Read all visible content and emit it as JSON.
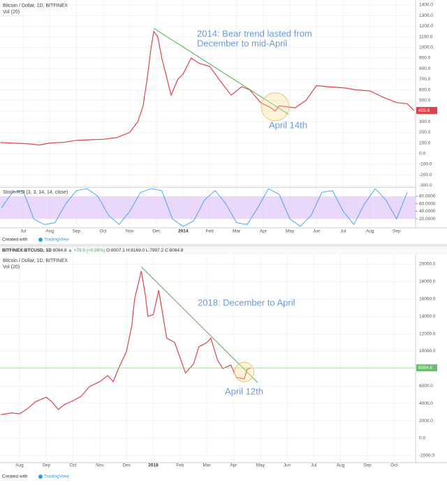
{
  "chart_data": [
    {
      "type": "line",
      "title": "Bitcoin / Dollar, 1D, BITFINEX",
      "volume_label": "Vol (20)",
      "color": "#e0424a",
      "grid": true,
      "x": [
        -0.85,
        -0.5,
        0,
        0.3,
        0.6,
        1,
        1.5,
        2,
        2.5,
        3,
        3.5,
        4,
        4.3,
        4.5,
        4.65,
        4.8,
        4.9,
        5.05,
        5.2,
        5.35,
        5.55,
        5.8,
        6.0,
        6.3,
        6.6,
        7.0,
        7.4,
        7.8,
        8.2,
        8.5,
        8.9,
        9.3,
        9.45,
        9.6,
        9.9,
        10.2,
        10.6,
        11.0,
        11.4,
        12.0,
        12.5,
        13.0,
        13.5,
        14.0,
        14.4,
        14.65
      ],
      "values": [
        105,
        100,
        95,
        90,
        80,
        100,
        105,
        125,
        130,
        135,
        150,
        200,
        300,
        450,
        700,
        1000,
        1150,
        1100,
        900,
        750,
        550,
        700,
        750,
        900,
        850,
        820,
        680,
        550,
        630,
        600,
        480,
        430,
        400,
        450,
        440,
        430,
        500,
        640,
        630,
        620,
        600,
        590,
        530,
        480,
        470,
        405.8
      ],
      "last_price": 405.8,
      "xlim": [
        -0.864,
        14.712
      ],
      "xticks": [
        {
          "value": 0,
          "label": "Jul"
        },
        {
          "value": 1,
          "label": "Aug"
        },
        {
          "value": 2,
          "label": "Sep"
        },
        {
          "value": 3,
          "label": "Oct"
        },
        {
          "value": 4,
          "label": "Nov"
        },
        {
          "value": 5,
          "label": "Dec"
        },
        {
          "value": 6,
          "label": "2014"
        },
        {
          "value": 7,
          "label": "Feb"
        },
        {
          "value": 8,
          "label": "Mar"
        },
        {
          "value": 9,
          "label": "Apr"
        },
        {
          "value": 10,
          "label": "May"
        },
        {
          "value": 11,
          "label": "Jun"
        },
        {
          "value": 12,
          "label": "Jul"
        },
        {
          "value": 13,
          "label": "Aug"
        },
        {
          "value": 14,
          "label": "Sep"
        }
      ],
      "ylim": [
        -300,
        1400
      ],
      "yticks": [
        {
          "value": 1400,
          "label": "1400.0"
        },
        {
          "value": 1300,
          "label": "1300.0"
        },
        {
          "value": 1200,
          "label": "1200.0"
        },
        {
          "value": 1100,
          "label": "1100.0"
        },
        {
          "value": 1000,
          "label": "1000.0"
        },
        {
          "value": 900,
          "label": "900.0"
        },
        {
          "value": 800,
          "label": "800.0"
        },
        {
          "value": 700,
          "label": "700.0"
        },
        {
          "value": 600,
          "label": "600.0"
        },
        {
          "value": 500,
          "label": "500.0"
        },
        {
          "value": 400,
          "label": "400.0"
        },
        {
          "value": 300,
          "label": "300.0"
        },
        {
          "value": 200,
          "label": "200.0"
        },
        {
          "value": 100,
          "label": "100.0"
        },
        {
          "value": 0,
          "label": "0.0"
        },
        {
          "value": -100,
          "label": "-100.0"
        },
        {
          "value": -200,
          "label": "-200.0"
        },
        {
          "value": -300,
          "label": "-300.0"
        }
      ],
      "trendline": {
        "color": "#4caf50",
        "x": [
          4.9,
          9.95
        ],
        "y": [
          1180,
          370
        ]
      },
      "highlight": {
        "x": 9.45,
        "y": 440
      },
      "annotations": [
        "2014: Bear trend lasted from",
        "December to mid-April"
      ],
      "callout": "April 14th",
      "stoch": {
        "title": "Stoch RSI (3, 3, 14, 14, close)",
        "color": "#2196f3",
        "ylim": [
          0,
          100
        ],
        "band": [
          20,
          80
        ],
        "yticks": [
          {
            "value": 80,
            "label": "80.0000"
          },
          {
            "value": 60,
            "label": "60.0000"
          },
          {
            "value": 40,
            "label": "40.0000"
          },
          {
            "value": 20,
            "label": "20.0000"
          }
        ],
        "x": [
          -0.8,
          -0.4,
          0,
          0.4,
          0.8,
          1.2,
          1.6,
          2,
          2.4,
          2.8,
          3.2,
          3.6,
          4,
          4.4,
          4.8,
          5.2,
          5.6,
          6,
          6.4,
          6.8,
          7.2,
          7.6,
          8,
          8.4,
          8.8,
          9.2,
          9.6,
          10,
          10.4,
          10.8,
          11.2,
          11.6,
          12,
          12.4,
          12.8,
          13.2,
          13.6,
          14,
          14.4
        ],
        "values": [
          50,
          90,
          95,
          20,
          5,
          10,
          60,
          95,
          100,
          80,
          30,
          5,
          40,
          90,
          100,
          95,
          20,
          0,
          15,
          70,
          95,
          60,
          10,
          5,
          50,
          100,
          85,
          20,
          0,
          30,
          90,
          95,
          40,
          5,
          60,
          100,
          70,
          20,
          90
        ]
      },
      "credit": "Created with",
      "brand": "TradingView"
    },
    {
      "type": "line",
      "title": "Bitcoin / Dollar, 1D, BITFINEX",
      "volume_label": "Vol (20)",
      "color": "#e0424a",
      "grid": true,
      "header": {
        "symbol": "BITFINEX:BTCUSD, 1D",
        "last": "8084.8",
        "change": "▲ +78.9 (+0.99%)",
        "ohlc": "O:8007.1 H:8169.0 L:7997.2 C:8084.8"
      },
      "x": [
        -0.7,
        -0.3,
        0,
        0.3,
        0.6,
        1.0,
        1.2,
        1.45,
        1.7,
        2.0,
        2.3,
        2.6,
        3.0,
        3.3,
        3.5,
        3.7,
        4.0,
        4.2,
        4.3,
        4.55,
        4.7,
        4.8,
        5.0,
        5.2,
        5.5,
        5.8,
        6.2,
        6.5,
        6.7,
        7.0,
        7.15,
        7.4,
        7.6,
        7.9,
        8.1,
        8.4,
        8.5,
        8.65
      ],
      "values": [
        2700,
        2900,
        2800,
        3400,
        4200,
        4700,
        4200,
        3300,
        3900,
        4300,
        4800,
        5900,
        6500,
        7200,
        6500,
        8000,
        10000,
        13000,
        16000,
        19200,
        16500,
        14000,
        14200,
        17000,
        11500,
        11000,
        7500,
        8500,
        10500,
        11000,
        11500,
        9000,
        8000,
        8400,
        7000,
        6800,
        7900,
        8084.8
      ],
      "last_price": 8084.8,
      "xlim": [
        -0.731,
        14.804
      ],
      "xticks": [
        {
          "value": 0,
          "label": "Aug"
        },
        {
          "value": 1,
          "label": "Sep"
        },
        {
          "value": 2,
          "label": "Oct"
        },
        {
          "value": 3,
          "label": "Nov"
        },
        {
          "value": 4,
          "label": "Dec"
        },
        {
          "value": 5,
          "label": "2018"
        },
        {
          "value": 6,
          "label": "Feb"
        },
        {
          "value": 7,
          "label": "Mar"
        },
        {
          "value": 8,
          "label": "Apr"
        },
        {
          "value": 9,
          "label": "May"
        },
        {
          "value": 10,
          "label": "Jun"
        },
        {
          "value": 11,
          "label": "Jul"
        },
        {
          "value": 12,
          "label": "Aug"
        },
        {
          "value": 13,
          "label": "Sep"
        },
        {
          "value": 14,
          "label": "Oct"
        }
      ],
      "ylim": [
        -2000,
        20000
      ],
      "yticks": [
        {
          "value": 20000,
          "label": "20000.0"
        },
        {
          "value": 18000,
          "label": "18000.0"
        },
        {
          "value": 16000,
          "label": "16000.0"
        },
        {
          "value": 14000,
          "label": "14000.0"
        },
        {
          "value": 12000,
          "label": "12000.0"
        },
        {
          "value": 10000,
          "label": "10000.0"
        },
        {
          "value": 8000,
          "label": "8000.0"
        },
        {
          "value": 6000,
          "label": "6000.0"
        },
        {
          "value": 4000,
          "label": "4000.0"
        },
        {
          "value": 2000,
          "label": "2000.0"
        },
        {
          "value": 0,
          "label": "0.0"
        },
        {
          "value": -2000,
          "label": "-2000.0"
        }
      ],
      "trendline": {
        "color": "#4caf50",
        "x": [
          4.55,
          8.9
        ],
        "y": [
          19700,
          6400
        ]
      },
      "highlight": {
        "x": 8.4,
        "y": 7600
      },
      "annotations": [
        "2018: December to April"
      ],
      "callout": "April 12th",
      "credit": "Created with",
      "brand": "TradingView"
    }
  ]
}
